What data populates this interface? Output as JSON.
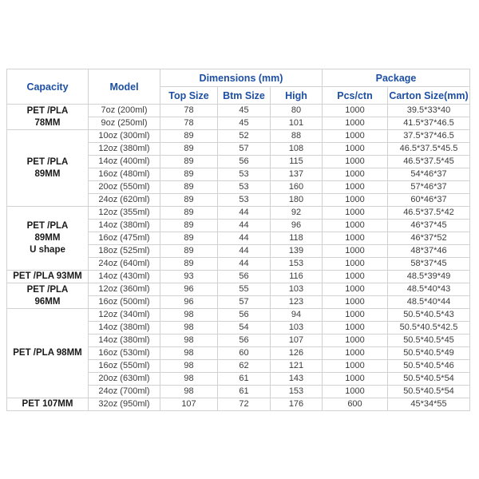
{
  "colors": {
    "header_text": "#1d4fa3",
    "body_text": "#3c3c3c",
    "capacity_text": "#1a1a1a",
    "border": "#d2d2d2",
    "background": "#ffffff"
  },
  "table": {
    "headers": {
      "capacity": "Capacity",
      "model": "Model",
      "dimensions": "Dimensions (mm)",
      "top_size": "Top Size",
      "btm_size": "Btm Size",
      "high": "High",
      "package": "Package",
      "pcs_ctn": "Pcs/ctn",
      "carton_size": "Carton Size(mm)"
    },
    "groups": [
      {
        "capacity": [
          "PET /PLA",
          "78MM"
        ],
        "rows": [
          {
            "model": "7oz (200ml)",
            "top": "78",
            "btm": "45",
            "high": "80",
            "pcs": "1000",
            "carton": "39.5*33*40"
          },
          {
            "model": "9oz (250ml)",
            "top": "78",
            "btm": "45",
            "high": "101",
            "pcs": "1000",
            "carton": "41.5*37*46.5"
          }
        ]
      },
      {
        "capacity": [
          "PET /PLA",
          "89MM"
        ],
        "rows": [
          {
            "model": "10oz (300ml)",
            "top": "89",
            "btm": "52",
            "high": "88",
            "pcs": "1000",
            "carton": "37.5*37*46.5"
          },
          {
            "model": "12oz (380ml)",
            "top": "89",
            "btm": "57",
            "high": "108",
            "pcs": "1000",
            "carton": "46.5*37.5*45.5"
          },
          {
            "model": "14oz (400ml)",
            "top": "89",
            "btm": "56",
            "high": "115",
            "pcs": "1000",
            "carton": "46.5*37.5*45"
          },
          {
            "model": "16oz (480ml)",
            "top": "89",
            "btm": "53",
            "high": "137",
            "pcs": "1000",
            "carton": "54*46*37"
          },
          {
            "model": "20oz (550ml)",
            "top": "89",
            "btm": "53",
            "high": "160",
            "pcs": "1000",
            "carton": "57*46*37"
          },
          {
            "model": "24oz (620ml)",
            "top": "89",
            "btm": "53",
            "high": "180",
            "pcs": "1000",
            "carton": "60*46*37"
          }
        ]
      },
      {
        "capacity": [
          "PET /PLA",
          "89MM",
          "U shape"
        ],
        "rows": [
          {
            "model": "12oz (355ml)",
            "top": "89",
            "btm": "44",
            "high": "92",
            "pcs": "1000",
            "carton": "46.5*37.5*42"
          },
          {
            "model": "14oz (380ml)",
            "top": "89",
            "btm": "44",
            "high": "96",
            "pcs": "1000",
            "carton": "46*37*45"
          },
          {
            "model": "16oz (475ml)",
            "top": "89",
            "btm": "44",
            "high": "118",
            "pcs": "1000",
            "carton": "46*37*52"
          },
          {
            "model": "18oz (525ml)",
            "top": "89",
            "btm": "44",
            "high": "139",
            "pcs": "1000",
            "carton": "48*37*46"
          },
          {
            "model": "24oz (640ml)",
            "top": "89",
            "btm": "44",
            "high": "153",
            "pcs": "1000",
            "carton": "58*37*45"
          }
        ]
      },
      {
        "capacity": [
          "PET /PLA 93MM"
        ],
        "rows": [
          {
            "model": "14oz (430ml)",
            "top": "93",
            "btm": "56",
            "high": "116",
            "pcs": "1000",
            "carton": "48.5*39*49"
          }
        ]
      },
      {
        "capacity": [
          "PET /PLA",
          "96MM"
        ],
        "rows": [
          {
            "model": "12oz (360ml)",
            "top": "96",
            "btm": "55",
            "high": "103",
            "pcs": "1000",
            "carton": "48.5*40*43"
          },
          {
            "model": "16oz (500ml)",
            "top": "96",
            "btm": "57",
            "high": "123",
            "pcs": "1000",
            "carton": "48.5*40*44"
          }
        ]
      },
      {
        "capacity": [
          "PET /PLA 98MM"
        ],
        "rows": [
          {
            "model": "12oz (340ml)",
            "top": "98",
            "btm": "56",
            "high": "94",
            "pcs": "1000",
            "carton": "50.5*40.5*43"
          },
          {
            "model": "14oz (380ml)",
            "top": "98",
            "btm": "54",
            "high": "103",
            "pcs": "1000",
            "carton": "50.5*40.5*42.5"
          },
          {
            "model": "14oz (380ml)",
            "top": "98",
            "btm": "56",
            "high": "107",
            "pcs": "1000",
            "carton": "50.5*40.5*45"
          },
          {
            "model": "16oz (530ml)",
            "top": "98",
            "btm": "60",
            "high": "126",
            "pcs": "1000",
            "carton": "50.5*40.5*49"
          },
          {
            "model": "16oz (550ml)",
            "top": "98",
            "btm": "62",
            "high": "121",
            "pcs": "1000",
            "carton": "50.5*40.5*46"
          },
          {
            "model": "20oz (630ml)",
            "top": "98",
            "btm": "61",
            "high": "143",
            "pcs": "1000",
            "carton": "50.5*40.5*54"
          },
          {
            "model": "24oz (700ml)",
            "top": "98",
            "btm": "61",
            "high": "153",
            "pcs": "1000",
            "carton": "50.5*40.5*54"
          }
        ]
      },
      {
        "capacity": [
          "PET 107MM"
        ],
        "rows": [
          {
            "model": "32oz (950ml)",
            "top": "107",
            "btm": "72",
            "high": "176",
            "pcs": "600",
            "carton": "45*34*55"
          }
        ]
      }
    ]
  }
}
